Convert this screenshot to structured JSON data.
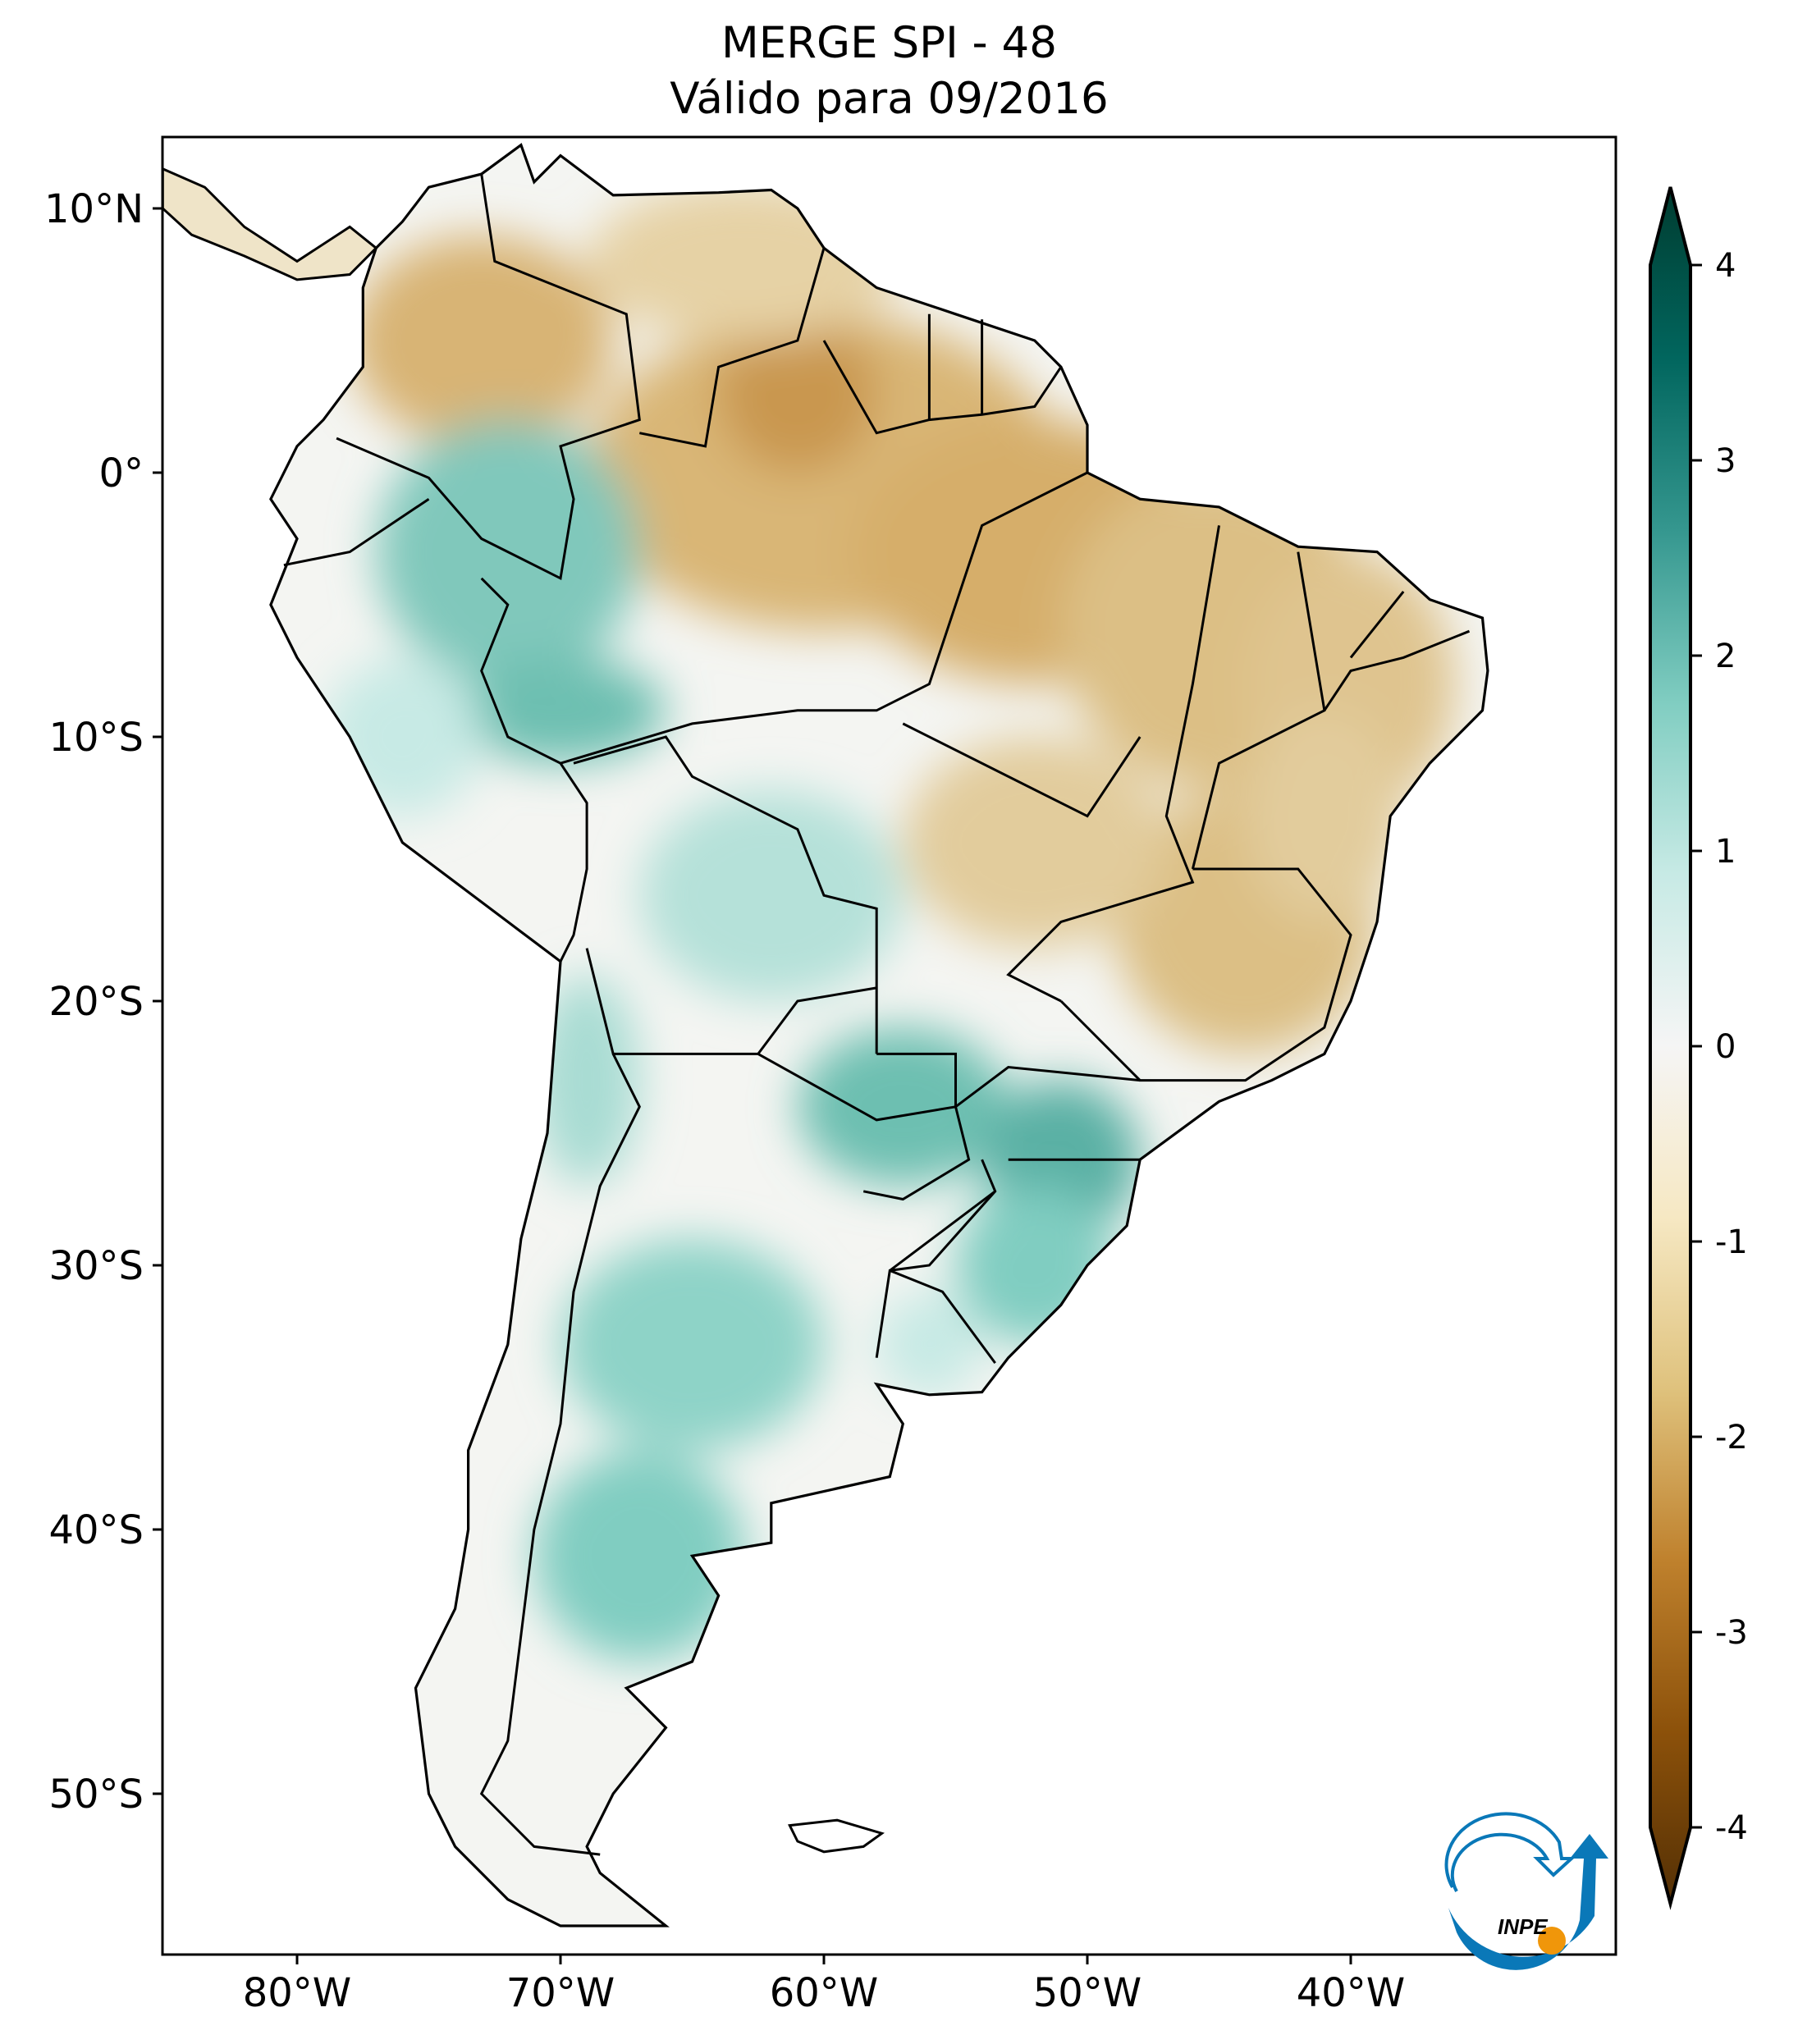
{
  "title": {
    "line1": "MERGE   SPI - 48",
    "line2": "Válido para 09/2016"
  },
  "map": {
    "extent": {
      "lon": [
        -85.1,
        -29.9
      ],
      "lat": [
        -56.1,
        12.7
      ]
    },
    "lon_ticks": [
      {
        "value": -80,
        "label": "80°W"
      },
      {
        "value": -70,
        "label": "70°W"
      },
      {
        "value": -60,
        "label": "60°W"
      },
      {
        "value": -50,
        "label": "50°W"
      },
      {
        "value": -40,
        "label": "40°W"
      }
    ],
    "lat_ticks": [
      {
        "value": 10,
        "label": "10°N"
      },
      {
        "value": 0,
        "label": "0°"
      },
      {
        "value": -10,
        "label": "10°S"
      },
      {
        "value": -20,
        "label": "20°S"
      },
      {
        "value": -30,
        "label": "30°S"
      },
      {
        "value": -40,
        "label": "40°S"
      },
      {
        "value": -50,
        "label": "50°S"
      }
    ]
  },
  "colorbar": {
    "range": [
      -4,
      4
    ],
    "extend": "both",
    "ticks": [
      {
        "value": 4,
        "label": "4"
      },
      {
        "value": 3,
        "label": "3"
      },
      {
        "value": 2,
        "label": "2"
      },
      {
        "value": 1,
        "label": "1"
      },
      {
        "value": 0,
        "label": "0"
      },
      {
        "value": -1,
        "label": "-1"
      },
      {
        "value": -2,
        "label": "-2"
      },
      {
        "value": -3,
        "label": "-3"
      },
      {
        "value": -4,
        "label": "-4"
      }
    ],
    "colormap": "BrBG",
    "colors": [
      "#543005",
      "#8c510a",
      "#bf812d",
      "#dfc27d",
      "#f6e8c3",
      "#f5f5f5",
      "#c7eae5",
      "#80cdc1",
      "#35978f",
      "#01665e",
      "#003c30"
    ]
  },
  "logo": {
    "text": "INPE",
    "blue": "#0a78b8",
    "orange": "#f0960a"
  }
}
